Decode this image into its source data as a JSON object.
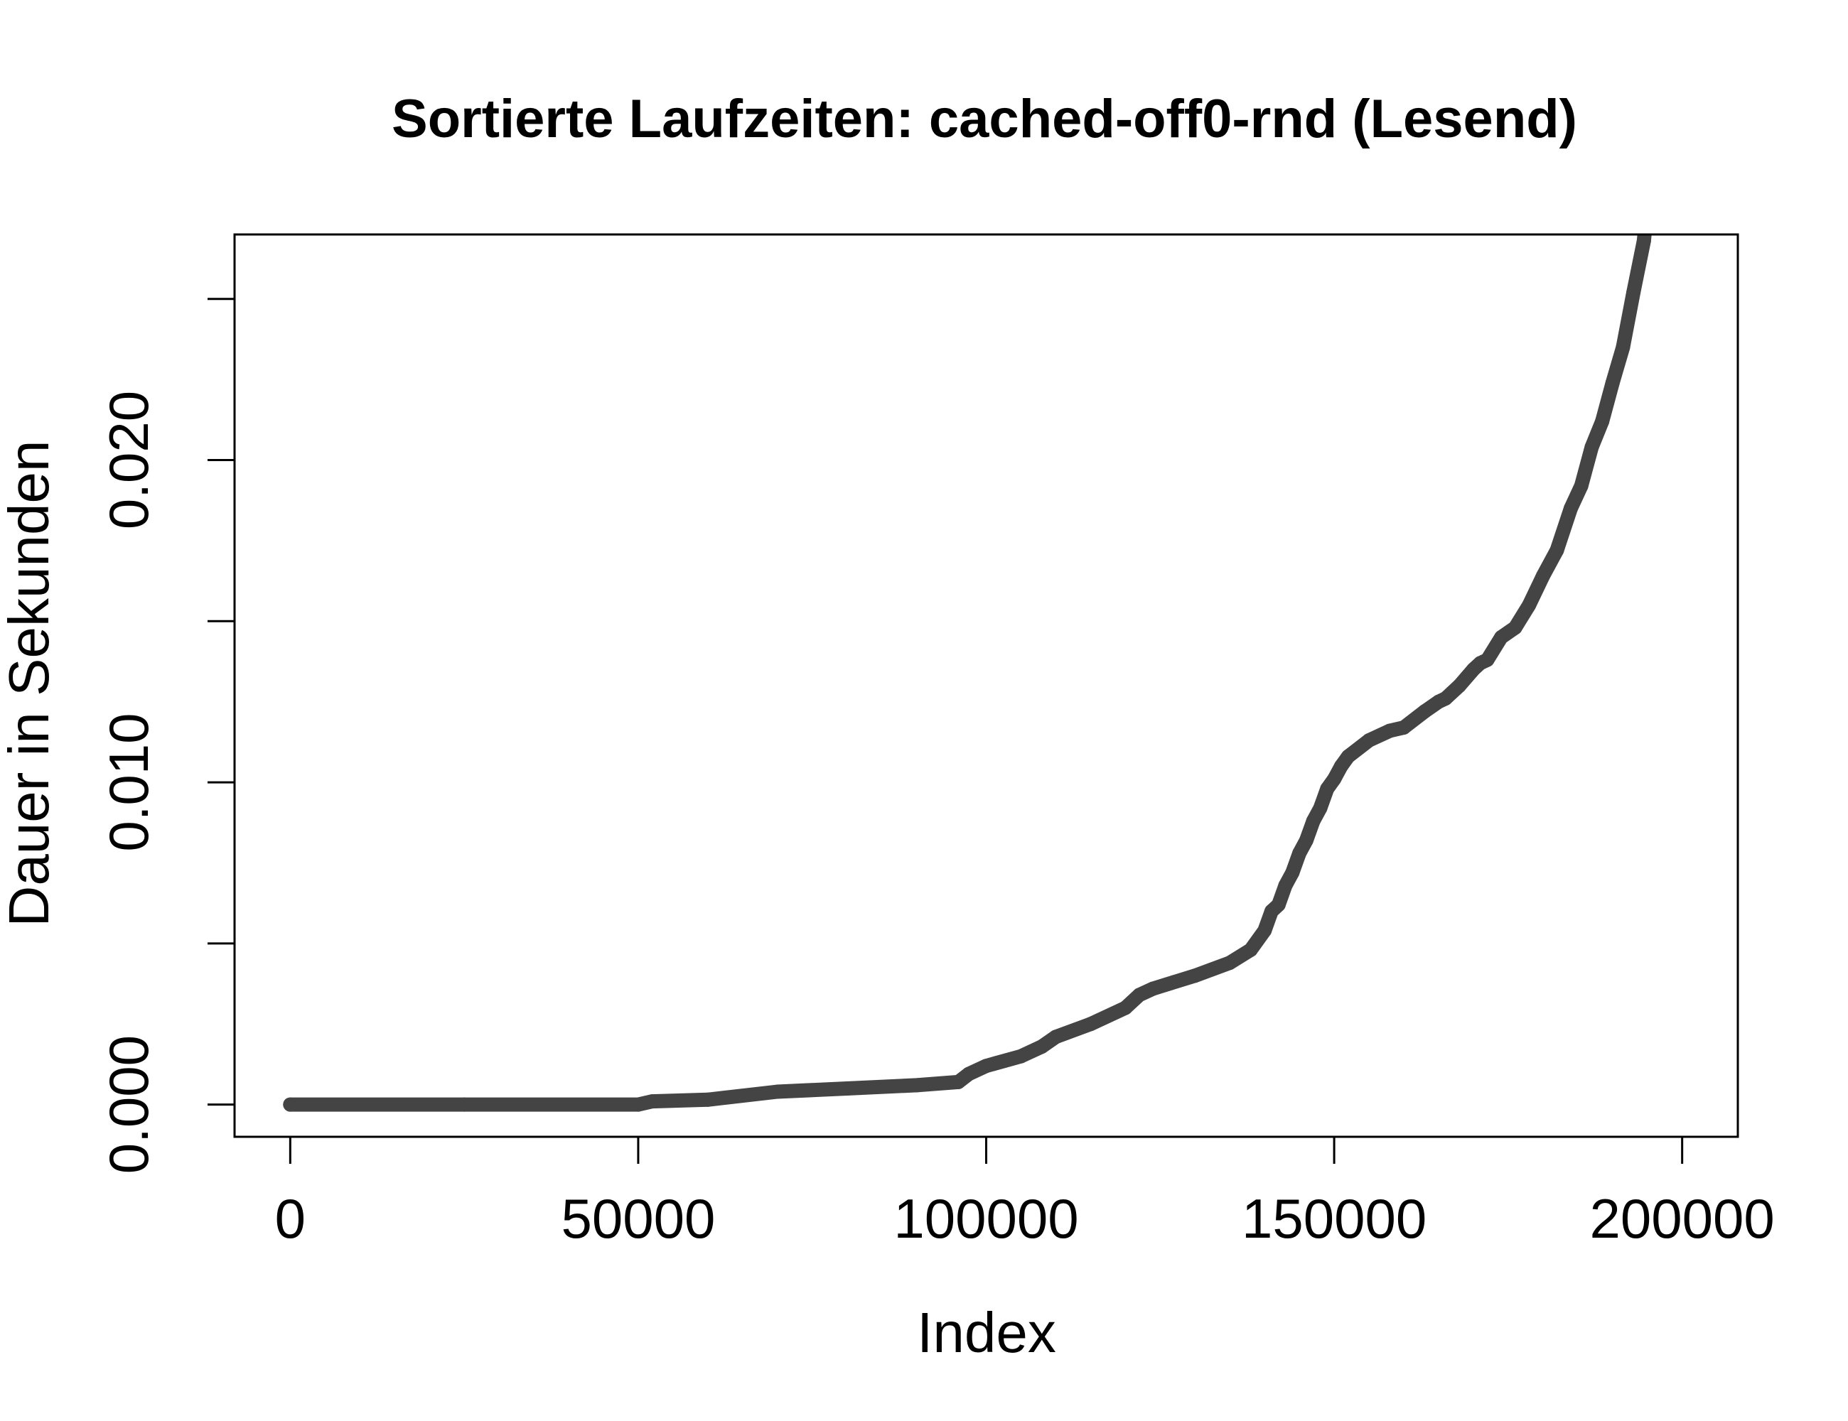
{
  "chart_data": {
    "type": "line",
    "title": "Sortierte Laufzeiten: cached-off0-rnd (Lesend)",
    "xlabel": "Index",
    "ylabel": "Dauer in Sekunden",
    "xlim": [
      -8000,
      208000
    ],
    "ylim": [
      -0.001,
      0.027
    ],
    "x_ticks": [
      0,
      50000,
      100000,
      150000,
      200000
    ],
    "x_tick_labels": [
      "0",
      "50000",
      "100000",
      "150000",
      "200000"
    ],
    "y_ticks": [
      0.0,
      0.005,
      0.01,
      0.015,
      0.02,
      0.025
    ],
    "y_tick_labels": [
      "0.000",
      "",
      "0.010",
      "",
      "0.020",
      ""
    ],
    "grid": false,
    "legend": "none",
    "line_color": "#444444",
    "series": [
      {
        "x": [
          0,
          25000,
          50000,
          52000,
          60000,
          70000,
          80000,
          90000,
          96000,
          97500,
          100000,
          105000,
          108000,
          110000,
          115000,
          120000,
          122000,
          124000,
          130000,
          135000,
          138000,
          140000,
          141000,
          142000,
          143000,
          144000,
          145000,
          146000,
          147000,
          148000,
          149000,
          150000,
          151000,
          152000,
          155000,
          158000,
          160000,
          163000,
          165000,
          166000,
          168000,
          170000,
          171000,
          172000,
          174000,
          176000,
          178000,
          180000,
          182000,
          184000,
          185500,
          187000,
          188500,
          190000,
          191500,
          193000,
          194500,
          195300
        ],
        "y": [
          0.0,
          0.0,
          0.0,
          0.0001,
          0.00015,
          0.0004,
          0.0005,
          0.0006,
          0.0007,
          0.00095,
          0.0012,
          0.0015,
          0.0018,
          0.0021,
          0.0025,
          0.003,
          0.0034,
          0.0036,
          0.004,
          0.0044,
          0.0048,
          0.0054,
          0.006,
          0.0062,
          0.0068,
          0.0072,
          0.0078,
          0.0082,
          0.0088,
          0.0092,
          0.0098,
          0.0101,
          0.0105,
          0.0108,
          0.0113,
          0.0116,
          0.0117,
          0.0122,
          0.0125,
          0.0126,
          0.013,
          0.0135,
          0.0137,
          0.0138,
          0.0145,
          0.0148,
          0.0155,
          0.0164,
          0.0172,
          0.0185,
          0.0192,
          0.0204,
          0.0212,
          0.0224,
          0.0235,
          0.0252,
          0.0268,
          0.0285
        ]
      }
    ]
  }
}
